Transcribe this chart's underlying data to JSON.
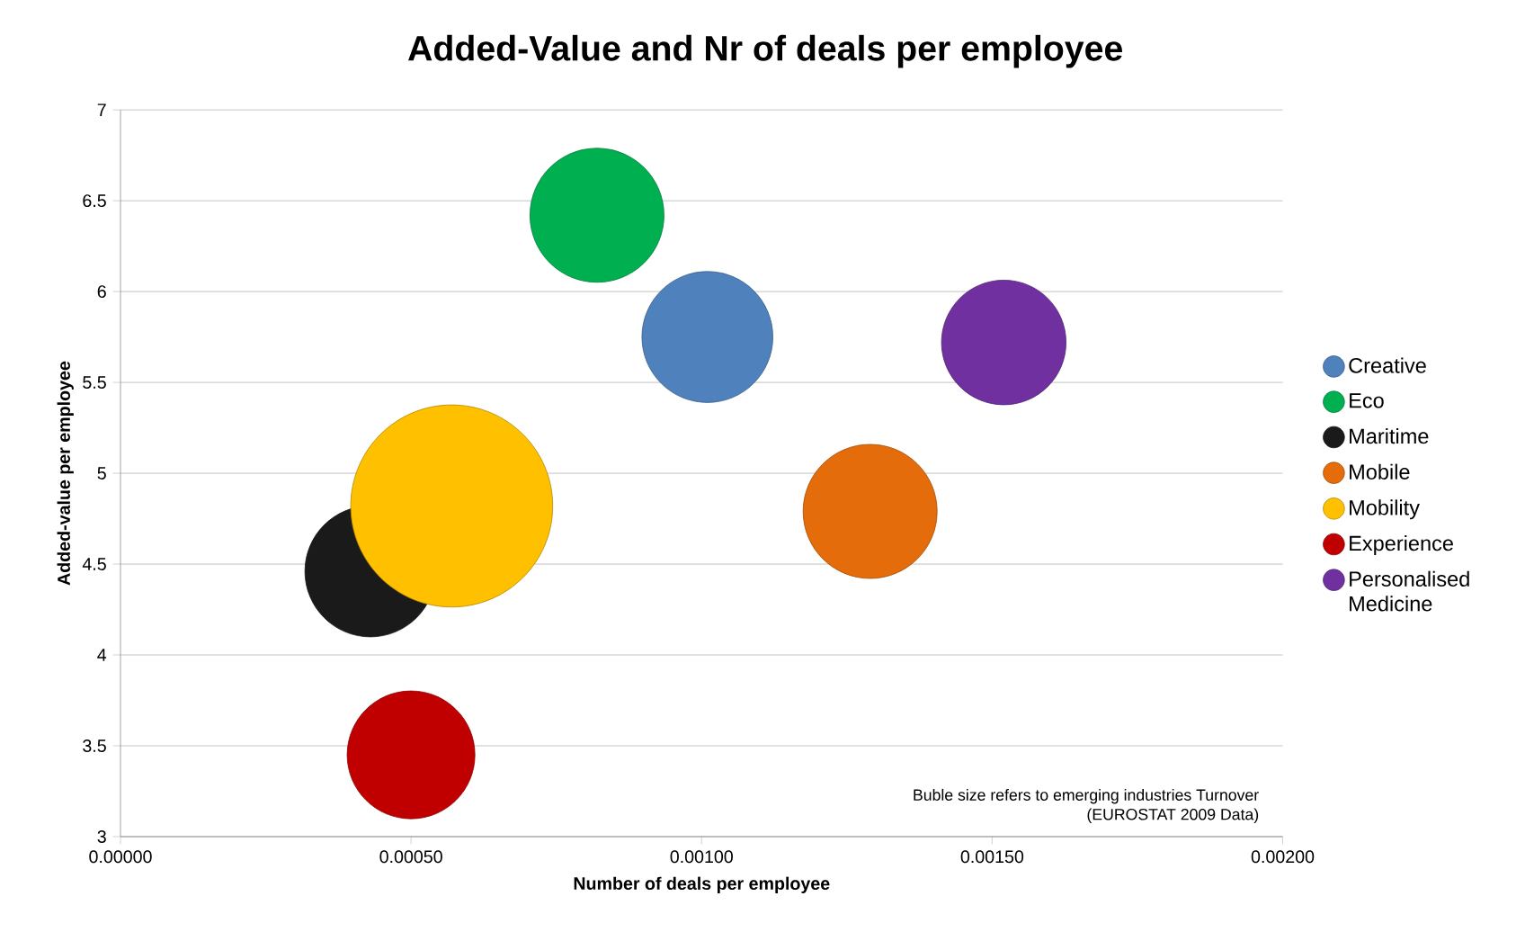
{
  "chart_data": {
    "type": "bubble",
    "title": "Added-Value and Nr of deals per employee",
    "xlabel": "Number of deals per employee",
    "ylabel": "Added-value per employee",
    "annotations": [
      "Buble size refers to emerging industries Turnover",
      "(EUROSTAT 2009 Data)"
    ],
    "series": [
      {
        "name": "Creative",
        "color": "#4f81bd",
        "x": [
          0.00101
        ],
        "values": [
          5.75
        ],
        "sizes": [
          0.42
        ]
      },
      {
        "name": "Eco",
        "color": "#00b050",
        "x": [
          0.00082
        ],
        "values": [
          6.42
        ],
        "sizes": [
          0.44
        ]
      },
      {
        "name": "Maritime",
        "color": "#1a1a1a",
        "x": [
          0.00043
        ],
        "values": [
          4.46
        ],
        "sizes": [
          0.42
        ]
      },
      {
        "name": "Mobile",
        "color": "#e46c0a",
        "x": [
          0.00129
        ],
        "values": [
          4.79
        ],
        "sizes": [
          0.44
        ]
      },
      {
        "name": "Mobility",
        "color": "#ffc000",
        "x": [
          0.00057
        ],
        "values": [
          4.82
        ],
        "sizes": [
          1
        ]
      },
      {
        "name": "Experience",
        "color": "#c00000",
        "x": [
          0.0005
        ],
        "values": [
          3.45
        ],
        "sizes": [
          0.4
        ]
      },
      {
        "name": "Personalised Medicine",
        "color": "#7030a0",
        "x": [
          0.00152
        ],
        "values": [
          5.72
        ],
        "sizes": [
          0.38
        ]
      }
    ],
    "xlim": [
      0,
      0.002
    ],
    "ylim": [
      3,
      7
    ],
    "xticks": [
      {
        "value": 0,
        "label": "0.00000"
      },
      {
        "value": 0.0005,
        "label": "0.00050"
      },
      {
        "value": 0.001,
        "label": "0.00100"
      },
      {
        "value": 0.0015,
        "label": "0.00150"
      },
      {
        "value": 0.002,
        "label": "0.00200"
      }
    ],
    "yticks": [
      3,
      3.5,
      4,
      4.5,
      5,
      5.5,
      6,
      6.5,
      7
    ],
    "grid": "y",
    "legend": "right"
  }
}
